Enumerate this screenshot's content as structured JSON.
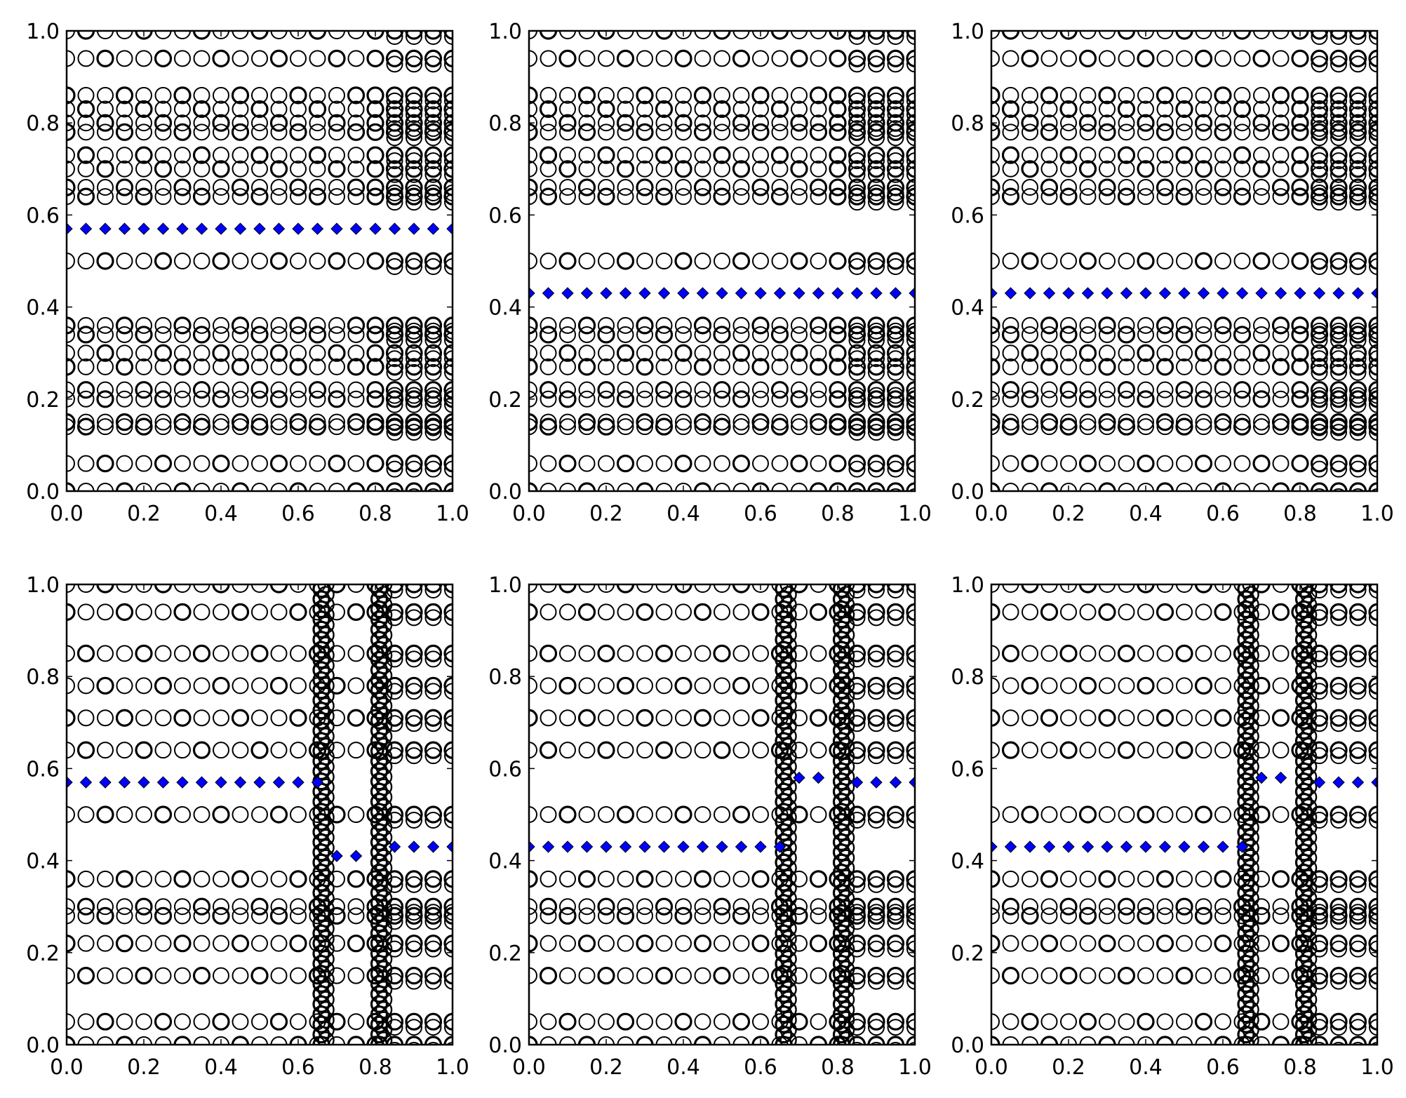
{
  "chart_data": [
    {
      "type": "scatter",
      "xlim": [
        0,
        1
      ],
      "ylim": [
        0,
        1
      ],
      "xticks": [
        "0.0",
        "0.2",
        "0.4",
        "0.6",
        "0.8",
        "1.0"
      ],
      "yticks": [
        "0.0",
        "0.2",
        "0.4",
        "0.6",
        "0.8",
        "1.0"
      ],
      "grid": false,
      "series": [
        {
          "marker": "circle-open",
          "color": "#000000",
          "y_rows": [
            0.0,
            0.06,
            0.14,
            0.15,
            0.2,
            0.22,
            0.27,
            0.3,
            0.34,
            0.36,
            0.5,
            0.64,
            0.66,
            0.7,
            0.73,
            0.78,
            0.8,
            0.83,
            0.86,
            0.94,
            1.0
          ]
        },
        {
          "marker": "diamond",
          "color": "#0000ff",
          "y_rows": [
            0.57
          ]
        }
      ]
    },
    {
      "type": "scatter",
      "xlim": [
        0,
        1
      ],
      "ylim": [
        0,
        1
      ],
      "xticks": [
        "0.0",
        "0.2",
        "0.4",
        "0.6",
        "0.8",
        "1.0"
      ],
      "yticks": [
        "0.0",
        "0.2",
        "0.4",
        "0.6",
        "0.8",
        "1.0"
      ],
      "grid": false,
      "series": [
        {
          "marker": "circle-open",
          "color": "#000000",
          "y_rows": [
            0.0,
            0.06,
            0.14,
            0.15,
            0.2,
            0.22,
            0.27,
            0.3,
            0.34,
            0.36,
            0.5,
            0.64,
            0.66,
            0.7,
            0.73,
            0.78,
            0.8,
            0.83,
            0.86,
            0.94,
            1.0
          ]
        },
        {
          "marker": "diamond",
          "color": "#0000ff",
          "y_rows": [
            0.43
          ]
        }
      ]
    },
    {
      "type": "scatter",
      "xlim": [
        0,
        1
      ],
      "ylim": [
        0,
        1
      ],
      "xticks": [
        "0.0",
        "0.2",
        "0.4",
        "0.6",
        "0.8",
        "1.0"
      ],
      "yticks": [
        "0.0",
        "0.2",
        "0.4",
        "0.6",
        "0.8",
        "1.0"
      ],
      "grid": false,
      "series": [
        {
          "marker": "circle-open",
          "color": "#000000",
          "y_rows": [
            0.0,
            0.06,
            0.14,
            0.15,
            0.2,
            0.22,
            0.27,
            0.3,
            0.34,
            0.36,
            0.5,
            0.64,
            0.66,
            0.7,
            0.73,
            0.78,
            0.8,
            0.83,
            0.86,
            0.94,
            1.0
          ]
        },
        {
          "marker": "diamond",
          "color": "#0000ff",
          "y_rows": [
            0.43
          ]
        }
      ]
    },
    {
      "type": "scatter",
      "xlim": [
        0,
        1
      ],
      "ylim": [
        0,
        1
      ],
      "xticks": [
        "0.0",
        "0.2",
        "0.4",
        "0.6",
        "0.8",
        "1.0"
      ],
      "yticks": [
        "0.0",
        "0.2",
        "0.4",
        "0.6",
        "0.8",
        "1.0"
      ],
      "grid": false,
      "vertical_clusters_x": [
        0.66,
        0.81
      ],
      "series": [
        {
          "marker": "circle-open",
          "color": "#000000",
          "y_rows": [
            0.0,
            0.05,
            0.15,
            0.22,
            0.28,
            0.3,
            0.36,
            0.5,
            0.64,
            0.71,
            0.78,
            0.85,
            0.94,
            1.0
          ]
        },
        {
          "marker": "diamond",
          "color": "#0000ff",
          "segments": [
            {
              "x_range": [
                0.0,
                0.65
              ],
              "y": 0.57
            },
            {
              "x_range": [
                0.66,
                0.78
              ],
              "y": 0.41
            },
            {
              "x_range": [
                0.82,
                1.0
              ],
              "y": 0.43
            }
          ]
        }
      ]
    },
    {
      "type": "scatter",
      "xlim": [
        0,
        1
      ],
      "ylim": [
        0,
        1
      ],
      "xticks": [
        "0.0",
        "0.2",
        "0.4",
        "0.6",
        "0.8",
        "1.0"
      ],
      "yticks": [
        "0.0",
        "0.2",
        "0.4",
        "0.6",
        "0.8",
        "1.0"
      ],
      "grid": false,
      "vertical_clusters_x": [
        0.66,
        0.81
      ],
      "series": [
        {
          "marker": "circle-open",
          "color": "#000000",
          "y_rows": [
            0.0,
            0.05,
            0.15,
            0.22,
            0.28,
            0.3,
            0.36,
            0.5,
            0.64,
            0.71,
            0.78,
            0.85,
            0.94,
            1.0
          ]
        },
        {
          "marker": "diamond",
          "color": "#0000ff",
          "segments": [
            {
              "x_range": [
                0.0,
                0.65
              ],
              "y": 0.43
            },
            {
              "x_range": [
                0.66,
                0.78
              ],
              "y": 0.58
            },
            {
              "x_range": [
                0.82,
                1.0
              ],
              "y": 0.57
            }
          ]
        }
      ]
    },
    {
      "type": "scatter",
      "xlim": [
        0,
        1
      ],
      "ylim": [
        0,
        1
      ],
      "xticks": [
        "0.0",
        "0.2",
        "0.4",
        "0.6",
        "0.8",
        "1.0"
      ],
      "yticks": [
        "0.0",
        "0.2",
        "0.4",
        "0.6",
        "0.8",
        "1.0"
      ],
      "grid": false,
      "vertical_clusters_x": [
        0.66,
        0.81
      ],
      "series": [
        {
          "marker": "circle-open",
          "color": "#000000",
          "y_rows": [
            0.0,
            0.05,
            0.15,
            0.22,
            0.28,
            0.3,
            0.36,
            0.5,
            0.64,
            0.71,
            0.78,
            0.85,
            0.94,
            1.0
          ]
        },
        {
          "marker": "diamond",
          "color": "#0000ff",
          "segments": [
            {
              "x_range": [
                0.0,
                0.65
              ],
              "y": 0.43
            },
            {
              "x_range": [
                0.66,
                0.78
              ],
              "y": 0.58
            },
            {
              "x_range": [
                0.82,
                1.0
              ],
              "y": 0.57
            }
          ]
        }
      ]
    }
  ]
}
